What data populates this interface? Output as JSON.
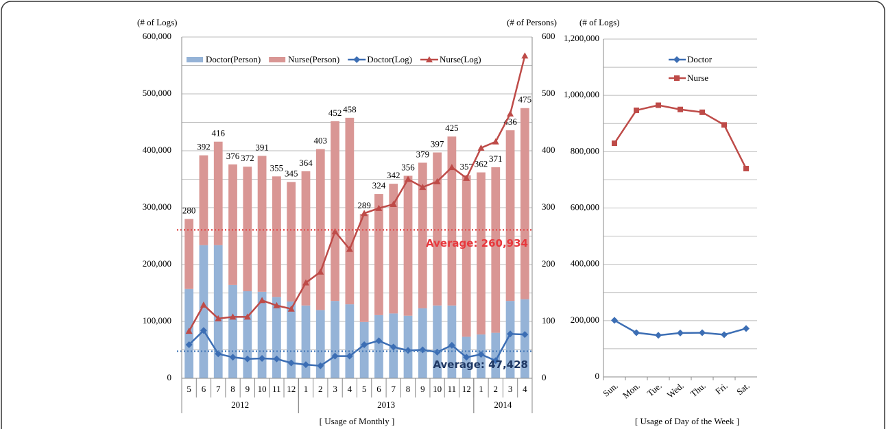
{
  "chart_data": [
    {
      "type": "combo",
      "y_label": "(# of Logs)",
      "y2_label": "(# of Persons)",
      "caption": "[ Usage of Monthly ]",
      "categories": [
        "5",
        "6",
        "7",
        "8",
        "9",
        "10",
        "11",
        "12",
        "1",
        "2",
        "3",
        "4",
        "5",
        "6",
        "7",
        "8",
        "9",
        "10",
        "11",
        "12",
        "1",
        "2",
        "3",
        "4"
      ],
      "groups": [
        {
          "label": "2012",
          "count": 8
        },
        {
          "label": "2013",
          "count": 12
        },
        {
          "label": "2014",
          "count": 4
        }
      ],
      "ylim": [
        0,
        600000
      ],
      "yticks": [
        {
          "value": 0,
          "label": "0"
        },
        {
          "value": 100000,
          "label": "100,000"
        },
        {
          "value": 200000,
          "label": "200,000"
        },
        {
          "value": 300000,
          "label": "300,000"
        },
        {
          "value": 400000,
          "label": "400,000"
        },
        {
          "value": 500000,
          "label": "500,000"
        },
        {
          "value": 600000,
          "label": "600,000"
        }
      ],
      "yminor": [
        50000,
        150000,
        250000,
        350000,
        450000,
        550000
      ],
      "y2lim": [
        0,
        600
      ],
      "y2ticks": [
        0,
        100,
        200,
        300,
        400,
        500,
        600
      ],
      "grid": true,
      "series": [
        {
          "name": "Doctor(Person)",
          "type": "bar",
          "axis": "y2",
          "color": "#95b3d7",
          "values": [
            157,
            234,
            234,
            164,
            153,
            152,
            143,
            135,
            128,
            120,
            136,
            130,
            99,
            111,
            114,
            110,
            123,
            128,
            128,
            73,
            77,
            80,
            136,
            139
          ]
        },
        {
          "name": "Nurse(Person)",
          "type": "bar",
          "axis": "y2",
          "color": "#d99694",
          "values": [
            123,
            158,
            182,
            212,
            219,
            239,
            212,
            210,
            236,
            283,
            316,
            328,
            190,
            213,
            228,
            246,
            256,
            269,
            297,
            284,
            285,
            291,
            300,
            336
          ]
        },
        {
          "name": "Doctor(Log)",
          "type": "line",
          "marker": "diamond",
          "color": "#3c6eb4",
          "values": [
            59000,
            84000,
            43000,
            37000,
            34000,
            35000,
            34000,
            27000,
            24000,
            22000,
            39000,
            39000,
            59000,
            66000,
            55000,
            49000,
            50000,
            46000,
            58000,
            37000,
            42000,
            31000,
            78000,
            77000
          ]
        },
        {
          "name": "Nurse(Log)",
          "type": "line",
          "marker": "triangle",
          "color": "#be4b48",
          "values": [
            83000,
            129000,
            105000,
            108000,
            108000,
            137000,
            128000,
            122000,
            168000,
            187000,
            258000,
            227000,
            290000,
            299000,
            306000,
            350000,
            336000,
            346000,
            371000,
            352000,
            405000,
            416000,
            465000,
            567000
          ]
        }
      ],
      "total_labels": [
        280,
        392,
        416,
        376,
        372,
        391,
        355,
        345,
        364,
        403,
        452,
        458,
        289,
        324,
        342,
        356,
        379,
        397,
        425,
        357,
        362,
        371,
        436,
        475
      ],
      "averages": [
        {
          "label": "Average: 260,934",
          "value": 260934,
          "line_color": "#e05555",
          "text_color": "#e8383d"
        },
        {
          "label": "Average: 47,428",
          "value": 47428,
          "line_color": "#4f81bd",
          "text_color": "#1f3864"
        }
      ]
    },
    {
      "type": "line",
      "y_label": "(# of Logs)",
      "caption": "[ Usage of Day of the Week ]",
      "categories": [
        "Sun.",
        "Mon.",
        "Tue.",
        "Wed.",
        "Thu.",
        "Fri.",
        "Sat."
      ],
      "ylim": [
        0,
        1200000
      ],
      "yticks": [
        {
          "value": 0,
          "label": "0"
        },
        {
          "value": 200000,
          "label": "200,000"
        },
        {
          "value": 400000,
          "label": "400,000"
        },
        {
          "value": 600000,
          "label": "600,000"
        },
        {
          "value": 800000,
          "label": "800,000"
        },
        {
          "value": 1000000,
          "label": "1,000,000"
        },
        {
          "value": 1200000,
          "label": "1,200,000"
        }
      ],
      "yminor": [
        100000,
        300000,
        500000,
        700000,
        900000,
        1100000
      ],
      "grid": true,
      "series": [
        {
          "name": "Doctor",
          "marker": "diamond",
          "color": "#3c6eb4",
          "values": [
            201000,
            157000,
            148000,
            156000,
            157000,
            150000,
            172000
          ]
        },
        {
          "name": "Nurse",
          "marker": "square",
          "color": "#be4b48",
          "values": [
            830000,
            947000,
            965000,
            950000,
            940000,
            895000,
            740000
          ]
        }
      ]
    }
  ]
}
